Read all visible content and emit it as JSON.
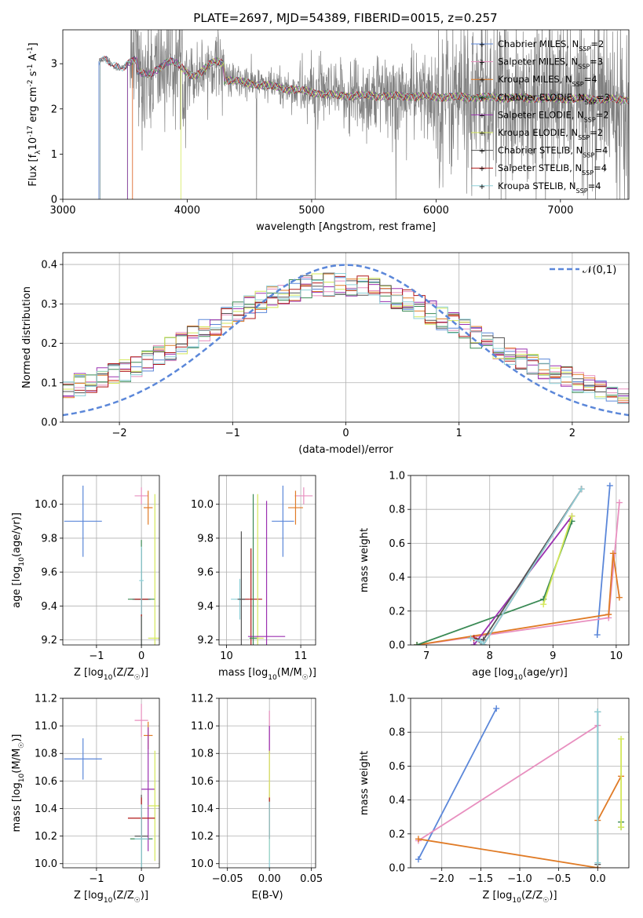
{
  "figure_title": "PLATE=2697, MJD=54389, FIBERID=0015, z=0.257",
  "model_colors": [
    "#5b87d9",
    "#e88fbf",
    "#e07b26",
    "#3a8a55",
    "#9b30b0",
    "#d4e85a",
    "#555555",
    "#b01818",
    "#8ed0d8"
  ],
  "chart_data": [
    {
      "id": "spectrum",
      "type": "line",
      "xlabel": "wavelength [Angstrom, rest frame]",
      "ylabel": "Flux [f$_\\lambda$10$^{-17}$ erg cm$^{-2}$ s$^{-1}$ A$^{-1}$]",
      "xlim": [
        3000,
        7550
      ],
      "ylim": [
        0,
        3.75
      ],
      "xticks": [
        3000,
        4000,
        5000,
        6000,
        7000
      ],
      "yticks": [
        0,
        1,
        2,
        3
      ],
      "grid": false,
      "legend_position": "top-right",
      "data_color": "#808080",
      "data_start": 3290,
      "model_starts": [
        3290,
        3560,
        3560,
        3520,
        3520,
        3950,
        3300,
        3300,
        3300
      ],
      "series": [
        {
          "name": "Chabrier MILES, N$_{SSP}$=2",
          "color": "#5b87d9",
          "marker": "+"
        },
        {
          "name": "Salpeter MILES, N$_{SSP}$=3",
          "color": "#e88fbf",
          "marker": "+"
        },
        {
          "name": "Kroupa MILES, N$_{SSP}$=4",
          "color": "#e07b26",
          "marker": "+"
        },
        {
          "name": "Chabrier ELODIE, N$_{SSP}$=3",
          "color": "#3a8a55",
          "marker": "+"
        },
        {
          "name": "Salpeter ELODIE, N$_{SSP}$=2",
          "color": "#9b30b0",
          "marker": "+"
        },
        {
          "name": "Kroupa ELODIE, N$_{SSP}$=2",
          "color": "#d4e85a",
          "marker": "+"
        },
        {
          "name": "Chabrier STELIB, N$_{SSP}$=4",
          "color": "#555555",
          "marker": "+"
        },
        {
          "name": "Salpeter STELIB, N$_{SSP}$=4",
          "color": "#b01818",
          "marker": "+"
        },
        {
          "name": "Kroupa STELIB, N$_{SSP}$=4",
          "color": "#8ed0d8",
          "marker": "+"
        }
      ]
    },
    {
      "id": "residuals",
      "type": "line",
      "xlabel": "(data-model)/error",
      "ylabel": "Normed distribution",
      "xlim": [
        -2.5,
        2.5
      ],
      "ylim": [
        0,
        0.43
      ],
      "xticks": [
        -2,
        -1,
        0,
        1,
        2
      ],
      "yticks": [
        0.0,
        0.1,
        0.2,
        0.3,
        0.4
      ],
      "grid": true,
      "legend_position": "top-right",
      "legend_label": "$\\mathcal{N}(0,1)$",
      "gaussian": {
        "mean": 0,
        "sigma": 1,
        "color": "#5b87d9"
      },
      "bin_edges_step": 0.1
    },
    {
      "id": "age_vs_Z",
      "type": "scatter",
      "xlabel": "Z [log$_{10}$(Z/Z$_\\odot$)]",
      "ylabel": "age  [log$_{10}$(age/yr)]",
      "xlim": [
        -1.75,
        0.4
      ],
      "ylim": [
        9.17,
        10.17
      ],
      "xticks": [
        -1,
        0
      ],
      "yticks": [
        9.2,
        9.4,
        9.6,
        9.8,
        10.0
      ],
      "grid": true,
      "points": [
        {
          "x": -1.3,
          "y": 9.9,
          "xe": 0.42,
          "ye": 0.21,
          "c": 0
        },
        {
          "x": 0.0,
          "y": 10.05,
          "xe": 0.15,
          "ye": 0.05,
          "c": 1
        },
        {
          "x": 0.15,
          "y": 9.98,
          "xe": 0.1,
          "ye": 0.1,
          "c": 2
        },
        {
          "x": 0.0,
          "y": 9.44,
          "xe": 0.3,
          "ye": 0.35,
          "c": 3
        },
        {
          "x": 0.0,
          "y": 9.44,
          "xe": 0.2,
          "ye": 0.3,
          "c": 6
        },
        {
          "x": 0.0,
          "y": 9.44,
          "xe": 0.15,
          "ye": 0.1,
          "c": 7
        },
        {
          "x": 0.3,
          "y": 9.21,
          "xe": 0.15,
          "ye": 0.85,
          "c": 5
        },
        {
          "x": 0.0,
          "y": 9.55,
          "xe": 0.05,
          "ye": 0.2,
          "c": 8
        }
      ]
    },
    {
      "id": "age_vs_mass",
      "type": "scatter",
      "xlabel": "mass [log$_{10}$(M/M$_\\odot$)]",
      "ylabel": "",
      "xlim": [
        9.9,
        11.2
      ],
      "ylim": [
        9.17,
        10.17
      ],
      "xticks": [
        10,
        11
      ],
      "yticks": [
        9.2,
        9.4,
        9.6,
        9.8,
        10.0
      ],
      "grid": true,
      "points": [
        {
          "x": 10.76,
          "y": 9.9,
          "xe": 0.15,
          "ye": 0.21,
          "c": 0
        },
        {
          "x": 11.04,
          "y": 10.05,
          "xe": 0.12,
          "ye": 0.05,
          "c": 1
        },
        {
          "x": 10.93,
          "y": 9.98,
          "xe": 0.1,
          "ye": 0.1,
          "c": 2
        },
        {
          "x": 10.18,
          "y": 9.44,
          "xe": 0.12,
          "ye": 0.12,
          "c": 8
        },
        {
          "x": 10.33,
          "y": 9.44,
          "xe": 0.15,
          "ye": 0.3,
          "c": 7
        },
        {
          "x": 10.2,
          "y": 9.44,
          "xe": 0.05,
          "ye": 0.4,
          "c": 6
        },
        {
          "x": 10.42,
          "y": 9.21,
          "xe": 0.08,
          "ye": 0.85,
          "c": 5
        },
        {
          "x": 10.54,
          "y": 9.22,
          "xe": 0.25,
          "ye": 0.8,
          "c": 4
        },
        {
          "x": 10.36,
          "y": 9.21,
          "xe": 0.05,
          "ye": 0.85,
          "c": 3
        }
      ]
    },
    {
      "id": "weight_vs_age",
      "type": "line",
      "xlabel": "age  [log$_{10}$(age/yr)]",
      "ylabel": "mass weight",
      "xlim": [
        6.75,
        10.2
      ],
      "ylim": [
        0,
        1.0
      ],
      "xticks": [
        7,
        8,
        9,
        10
      ],
      "yticks": [
        0.0,
        0.2,
        0.4,
        0.6,
        0.8,
        1.0
      ],
      "grid": true,
      "series": [
        {
          "c": 0,
          "x": [
            9.7,
            9.9
          ],
          "y": [
            0.06,
            0.94
          ]
        },
        {
          "c": 1,
          "x": [
            6.85,
            9.88,
            10.05
          ],
          "y": [
            0.0,
            0.16,
            0.84
          ]
        },
        {
          "c": 2,
          "x": [
            6.85,
            9.88,
            9.95,
            10.05
          ],
          "y": [
            0.0,
            0.18,
            0.54,
            0.28
          ]
        },
        {
          "c": 3,
          "x": [
            6.85,
            8.85,
            9.3
          ],
          "y": [
            0.0,
            0.27,
            0.73
          ]
        },
        {
          "c": 4,
          "x": [
            7.75,
            9.3
          ],
          "y": [
            0.0,
            0.76
          ]
        },
        {
          "c": 5,
          "x": [
            8.85,
            9.3
          ],
          "y": [
            0.24,
            0.76
          ]
        },
        {
          "c": 6,
          "x": [
            7.75,
            7.9,
            9.45
          ],
          "y": [
            0.04,
            0.03,
            0.92
          ]
        },
        {
          "c": 7,
          "x": [
            7.75,
            7.9,
            9.45
          ],
          "y": [
            0.04,
            0.0,
            0.92
          ]
        },
        {
          "c": 8,
          "x": [
            7.7,
            7.85,
            7.9,
            9.45
          ],
          "y": [
            0.04,
            0.02,
            0.0,
            0.92
          ]
        }
      ]
    },
    {
      "id": "mass_vs_Z",
      "type": "scatter",
      "xlabel": "Z [log$_{10}$(Z/Z$_\\odot$)]",
      "ylabel": "mass [log$_{10}$(M/M$_\\odot$)]",
      "xlim": [
        -1.75,
        0.4
      ],
      "ylim": [
        9.97,
        11.2
      ],
      "xticks": [
        -1,
        0
      ],
      "yticks": [
        10.0,
        10.2,
        10.4,
        10.6,
        10.8,
        11.0,
        11.2
      ],
      "grid": true,
      "points": [
        {
          "x": -1.3,
          "y": 10.76,
          "xe": 0.42,
          "ye": 0.15,
          "c": 0
        },
        {
          "x": 0.0,
          "y": 11.04,
          "xe": 0.15,
          "ye": 0.12,
          "c": 1
        },
        {
          "x": 0.15,
          "y": 10.93,
          "xe": 0.1,
          "ye": 0.1,
          "c": 2
        },
        {
          "x": 0.0,
          "y": 10.18,
          "xe": 0.25,
          "ye": 0.2,
          "c": 3
        },
        {
          "x": 0.15,
          "y": 10.54,
          "xe": 0.15,
          "ye": 0.45,
          "c": 4
        },
        {
          "x": 0.3,
          "y": 10.42,
          "xe": 0.15,
          "ye": 0.4,
          "c": 5
        },
        {
          "x": 0.0,
          "y": 10.2,
          "xe": 0.15,
          "ye": 0.3,
          "c": 6
        },
        {
          "x": 0.0,
          "y": 10.33,
          "xe": 0.3,
          "ye": 0.15,
          "c": 7
        },
        {
          "x": 0.0,
          "y": 10.18,
          "xe": 0.15,
          "ye": 0.25,
          "c": 8
        }
      ]
    },
    {
      "id": "mass_vs_EBV",
      "type": "scatter",
      "xlabel": "E(B-V)",
      "ylabel": "",
      "xlim": [
        -0.06,
        0.055
      ],
      "ylim": [
        9.97,
        11.2
      ],
      "xticks": [
        -0.05,
        0.0,
        0.05
      ],
      "yticks": [
        10.0,
        10.2,
        10.4,
        10.6,
        10.8,
        11.0,
        11.2
      ],
      "grid": true,
      "points": [
        {
          "x": 0.0,
          "y": 10.76,
          "xe": 0,
          "ye": 0.35,
          "c": 1
        },
        {
          "x": 0.0,
          "y": 10.9,
          "xe": 0,
          "ye": 0.1,
          "c": 4
        },
        {
          "x": 0.0,
          "y": 10.42,
          "xe": 0,
          "ye": 0.4,
          "c": 5
        },
        {
          "x": 0.0,
          "y": 10.33,
          "xe": 0,
          "ye": 0.15,
          "c": 7
        },
        {
          "x": 0.0,
          "y": 10.2,
          "xe": 0,
          "ye": 0.25,
          "c": 8
        }
      ]
    },
    {
      "id": "weight_vs_Z",
      "type": "line",
      "xlabel": "Z [log$_{10}$(Z/Z$_\\odot$)]",
      "ylabel": "mass weight",
      "xlim": [
        -2.4,
        0.4
      ],
      "ylim": [
        0,
        1.0
      ],
      "xticks": [
        -2.0,
        -1.5,
        -1.0,
        -0.5,
        0.0
      ],
      "yticks": [
        0.0,
        0.2,
        0.4,
        0.6,
        0.8,
        1.0
      ],
      "grid": true,
      "series": [
        {
          "c": 0,
          "x": [
            -2.3,
            -1.3
          ],
          "y": [
            0.05,
            0.94
          ]
        },
        {
          "c": 1,
          "x": [
            -2.3,
            0.0
          ],
          "y": [
            0.16,
            0.84
          ]
        },
        {
          "c": 2,
          "x": [
            -2.3,
            0.0,
            0.0,
            0.3
          ],
          "y": [
            0.17,
            0.0,
            0.28,
            0.54
          ]
        },
        {
          "c": 3,
          "x": [
            0.3,
            0.3
          ],
          "y": [
            0.24,
            0.27
          ]
        },
        {
          "c": 5,
          "x": [
            0.3,
            0.3
          ],
          "y": [
            0.24,
            0.76
          ]
        },
        {
          "c": 6,
          "x": [
            0.0,
            0.0
          ],
          "y": [
            0.02,
            0.92
          ]
        },
        {
          "c": 8,
          "x": [
            0.0,
            0.0
          ],
          "y": [
            0.03,
            0.92
          ]
        }
      ]
    }
  ]
}
